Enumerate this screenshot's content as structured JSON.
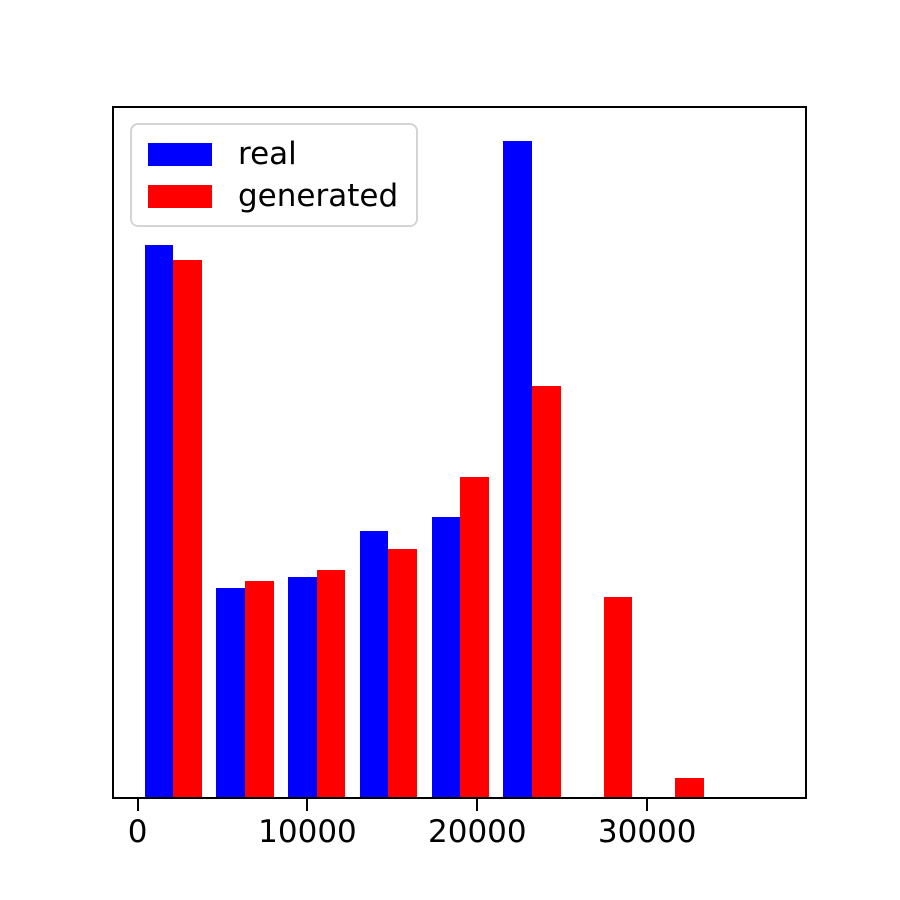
{
  "chart_data": {
    "type": "bar",
    "subtype": "grouped-histogram",
    "title": "",
    "xlabel": "",
    "ylabel": "",
    "grid": false,
    "x_axis": {
      "xlim": [
        -1390,
        39290
      ],
      "ticks": [
        0,
        10000,
        20000,
        30000
      ],
      "tick_labels": [
        "0",
        "10000",
        "20000",
        "30000"
      ]
    },
    "y_axis": {
      "ticks_visible": false,
      "units": "relative height, fraction of plot height",
      "ylim": [
        0,
        1.0
      ]
    },
    "bin_edges": [
      0,
      4220,
      8440,
      12660,
      16880,
      21100,
      25320,
      29540,
      33760
    ],
    "bar_group_fill": 0.8,
    "series": [
      {
        "name": "real",
        "color": "#0000ff",
        "values": [
          0.801,
          0.303,
          0.319,
          0.386,
          0.407,
          0.952,
          0.0,
          0.0
        ]
      },
      {
        "name": "generated",
        "color": "#ff0000",
        "values": [
          0.78,
          0.313,
          0.329,
          0.36,
          0.464,
          0.597,
          0.29,
          0.027
        ]
      }
    ],
    "legend": {
      "position": "upper-left",
      "entries": [
        "real",
        "generated"
      ]
    }
  },
  "colors": {
    "background": "#ffffff",
    "axis": "#000000",
    "legend_border": "#d4d4d4",
    "real": "#0000ff",
    "generated": "#ff0000"
  }
}
